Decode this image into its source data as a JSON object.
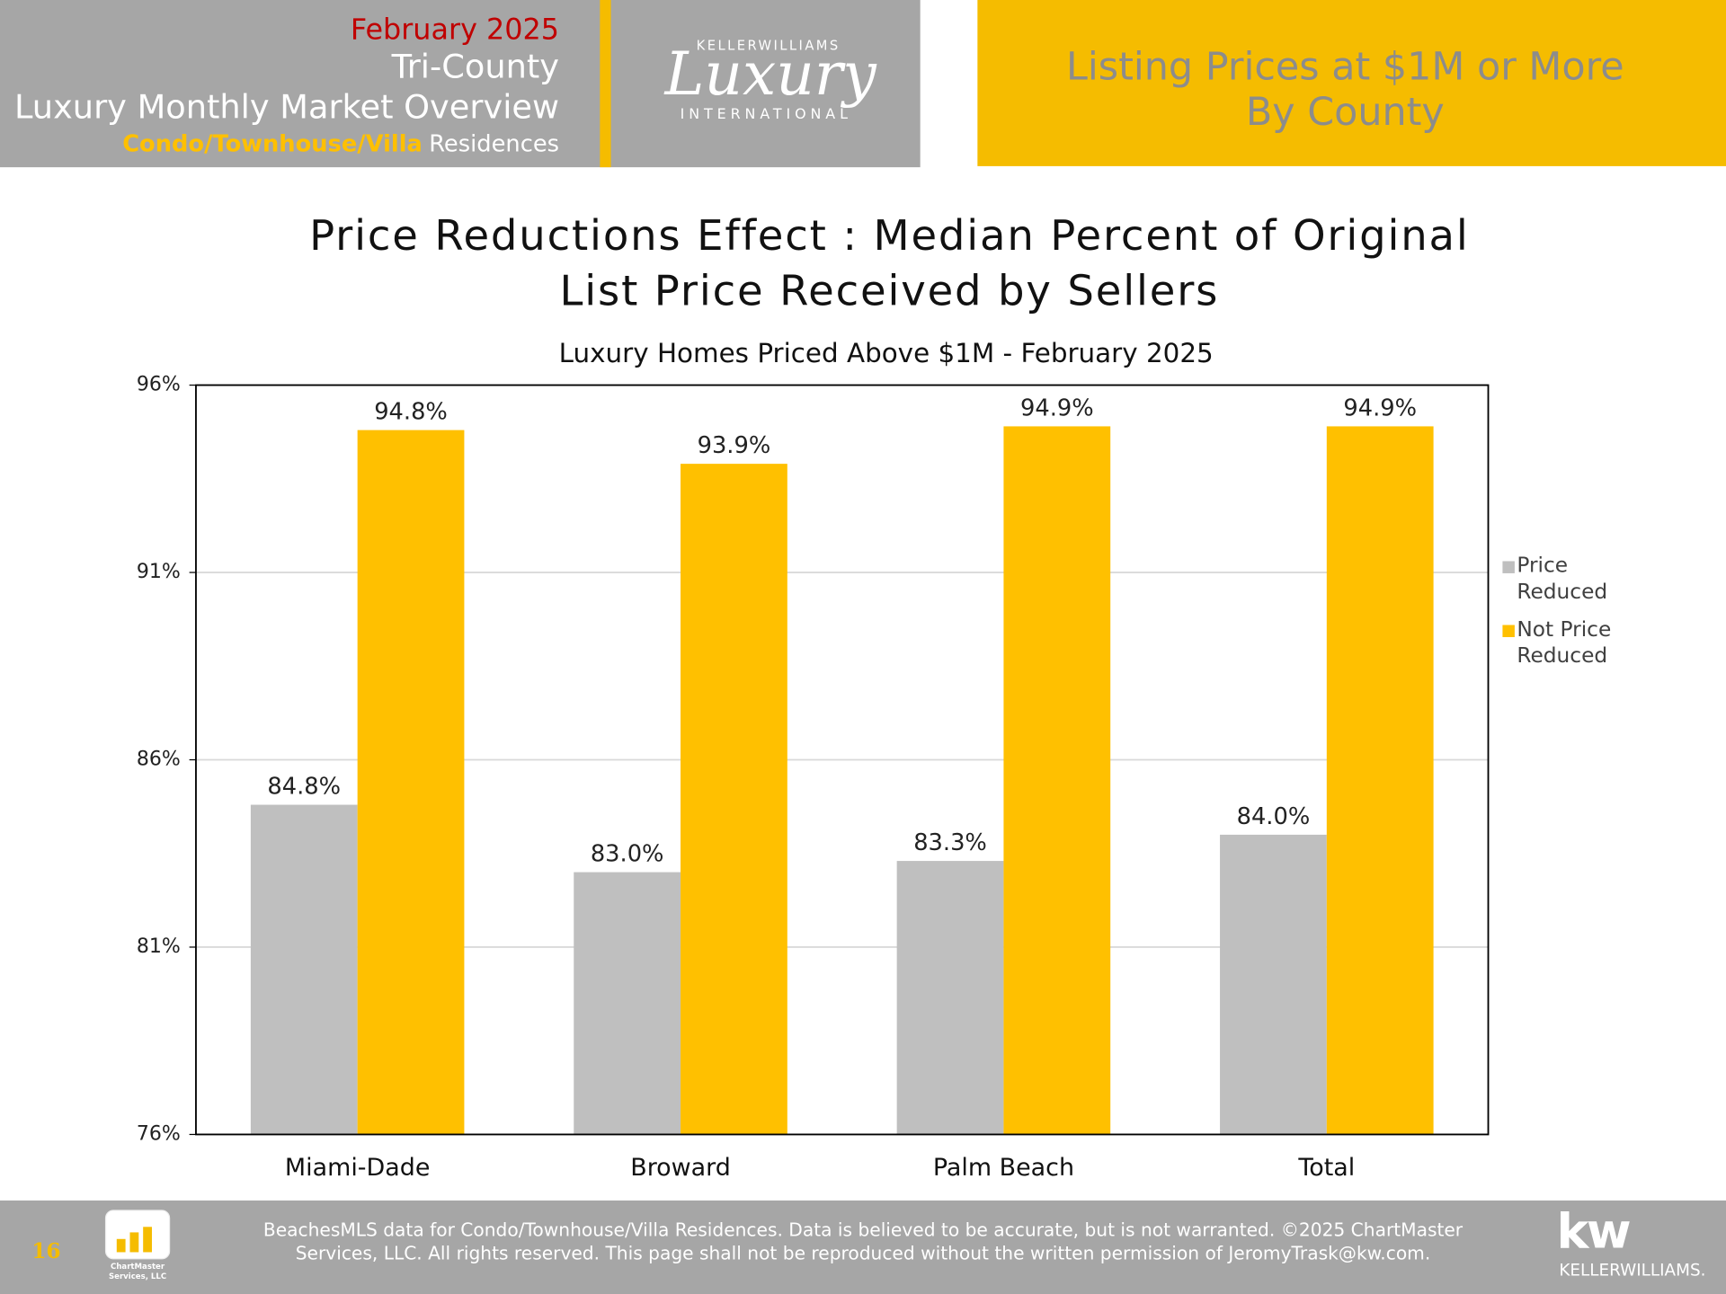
{
  "header": {
    "date": "February 2025",
    "region": "Tri-County",
    "report": "Luxury Monthly Market Overview",
    "segment": "Condo/Townhouse/Villa",
    "segment_suffix": "Residences",
    "logo_top": "KELLERWILLIAMS",
    "logo_main": "Luxury",
    "logo_bottom": "INTERNATIONAL",
    "banner": [
      "Listing Prices at $1M or More",
      "By County"
    ]
  },
  "chart_data": {
    "type": "bar",
    "title": [
      "Price Reductions Effect : Median Percent of Original",
      "List Price Received by Sellers"
    ],
    "subtitle": "Luxury Homes Priced Above $1M - February 2025",
    "categories": [
      "Miami-Dade",
      "Broward",
      "Palm Beach",
      "Total"
    ],
    "series": [
      {
        "name": "Price Reduced",
        "color": "#bfbfbf",
        "values": [
          84.8,
          83.0,
          83.3,
          84.0
        ],
        "value_labels": [
          "84.8%",
          "83.0%",
          "83.3%",
          "84.0%"
        ]
      },
      {
        "name": "Not Price Reduced",
        "color": "#ffc000",
        "values": [
          94.8,
          93.9,
          94.9,
          94.9
        ],
        "value_labels": [
          "94.8%",
          "93.9%",
          "94.9%",
          "94.9%"
        ]
      }
    ],
    "ylim": [
      76,
      96
    ],
    "yticks": [
      {
        "value": 76,
        "label": "76%"
      },
      {
        "value": 81,
        "label": "81%"
      },
      {
        "value": 86,
        "label": "86%"
      },
      {
        "value": 91,
        "label": "91%"
      },
      {
        "value": 96,
        "label": "96%"
      }
    ],
    "grid": true,
    "legend": "right"
  },
  "footer": {
    "page": "16",
    "logo_text": "ChartMaster Services, LLC",
    "notice": [
      "BeachesMLS data for Condo/Townhouse/Villa Residences.  Data is believed to be accurate, but is not warranted.   ©2025  ChartMaster",
      "Services, LLC.  All rights reserved. This page shall not be reproduced without the written permission of JeromyTrask@kw.com."
    ],
    "brand_mark": "kw",
    "brand": "KELLERWILLIAMS."
  }
}
